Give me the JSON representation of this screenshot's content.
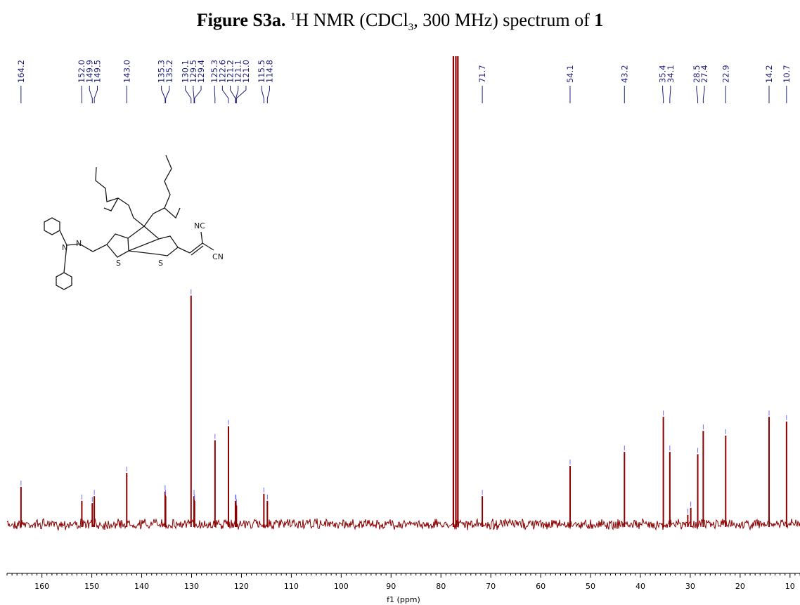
{
  "figure": {
    "label": "Figure S3a.",
    "sup": "1",
    "nucleus": "H",
    "before_sub": " NMR (CDCl",
    "sub": "3",
    "after_sub": ", 300 MHz) spectrum of ",
    "compound": "1"
  },
  "colors": {
    "spectrum": "#8b0000",
    "peak_labels": "#1f1f7a",
    "axis": "#000000"
  },
  "structure_labels": {
    "nc": "NC",
    "cn": "CN",
    "s1": "S",
    "s2": "S",
    "n1": "N",
    "n2": "N"
  },
  "chart_data": {
    "type": "line",
    "title": "",
    "xlabel": "f1 (ppm)",
    "ylabel": "",
    "x_reversed": true,
    "xlim": [
      167.0,
      8.0
    ],
    "xticks": [
      160,
      150,
      140,
      130,
      120,
      110,
      100,
      90,
      80,
      70,
      60,
      50,
      40,
      30,
      20,
      10
    ],
    "y_axis_visible": false,
    "grid": false,
    "peaks": [
      {
        "ppm": 164.2,
        "intensity": 0.08
      },
      {
        "ppm": 152.0,
        "intensity": 0.05
      },
      {
        "ppm": 149.9,
        "intensity": 0.045
      },
      {
        "ppm": 149.5,
        "intensity": 0.06
      },
      {
        "ppm": 143.0,
        "intensity": 0.11
      },
      {
        "ppm": 135.3,
        "intensity": 0.07
      },
      {
        "ppm": 135.2,
        "intensity": 0.06
      },
      {
        "ppm": 130.1,
        "intensity": 0.49
      },
      {
        "ppm": 129.5,
        "intensity": 0.06
      },
      {
        "ppm": 129.4,
        "intensity": 0.05
      },
      {
        "ppm": 125.3,
        "intensity": 0.18
      },
      {
        "ppm": 122.6,
        "intensity": 0.21
      },
      {
        "ppm": 121.2,
        "intensity": 0.05
      },
      {
        "ppm": 121.1,
        "intensity": 0.05
      },
      {
        "ppm": 121.0,
        "intensity": 0.04
      },
      {
        "ppm": 115.5,
        "intensity": 0.065
      },
      {
        "ppm": 114.8,
        "intensity": 0.05
      },
      {
        "ppm": 77.5,
        "intensity": 1.0
      },
      {
        "ppm": 77.0,
        "intensity": 1.0
      },
      {
        "ppm": 76.6,
        "intensity": 1.0
      },
      {
        "ppm": 71.7,
        "intensity": 0.06
      },
      {
        "ppm": 54.1,
        "intensity": 0.125
      },
      {
        "ppm": 43.2,
        "intensity": 0.155
      },
      {
        "ppm": 35.4,
        "intensity": 0.23
      },
      {
        "ppm": 34.1,
        "intensity": 0.155
      },
      {
        "ppm": 30.5,
        "intensity": 0.02
      },
      {
        "ppm": 29.9,
        "intensity": 0.035
      },
      {
        "ppm": 28.5,
        "intensity": 0.15
      },
      {
        "ppm": 27.4,
        "intensity": 0.2
      },
      {
        "ppm": 22.9,
        "intensity": 0.19
      },
      {
        "ppm": 14.2,
        "intensity": 0.23
      },
      {
        "ppm": 10.7,
        "intensity": 0.22
      }
    ],
    "peak_labels": [
      {
        "ppm": 164.2,
        "text": "164.2"
      },
      {
        "ppm": 152.0,
        "text": "152.0"
      },
      {
        "ppm": 149.9,
        "text": "149.9"
      },
      {
        "ppm": 149.5,
        "text": "149.5"
      },
      {
        "ppm": 143.0,
        "text": "143.0"
      },
      {
        "ppm": 135.3,
        "text": "135.3"
      },
      {
        "ppm": 135.2,
        "text": "135.2"
      },
      {
        "ppm": 130.1,
        "text": "130.1"
      },
      {
        "ppm": 129.5,
        "text": "129.5"
      },
      {
        "ppm": 129.4,
        "text": "129.4"
      },
      {
        "ppm": 125.3,
        "text": "125.3"
      },
      {
        "ppm": 122.6,
        "text": "122.6"
      },
      {
        "ppm": 121.2,
        "text": "121.2"
      },
      {
        "ppm": 121.1,
        "text": "121.1"
      },
      {
        "ppm": 121.0,
        "text": "121.0"
      },
      {
        "ppm": 115.5,
        "text": "115.5"
      },
      {
        "ppm": 114.8,
        "text": "114.8"
      },
      {
        "ppm": 71.7,
        "text": "71.7"
      },
      {
        "ppm": 54.1,
        "text": "54.1"
      },
      {
        "ppm": 43.2,
        "text": "43.2"
      },
      {
        "ppm": 35.4,
        "text": "35.4"
      },
      {
        "ppm": 34.1,
        "text": "34.1"
      },
      {
        "ppm": 28.5,
        "text": "28.5"
      },
      {
        "ppm": 27.4,
        "text": "27.4"
      },
      {
        "ppm": 22.9,
        "text": "22.9"
      },
      {
        "ppm": 14.2,
        "text": "14.2"
      },
      {
        "ppm": 10.7,
        "text": "10.7"
      }
    ]
  }
}
